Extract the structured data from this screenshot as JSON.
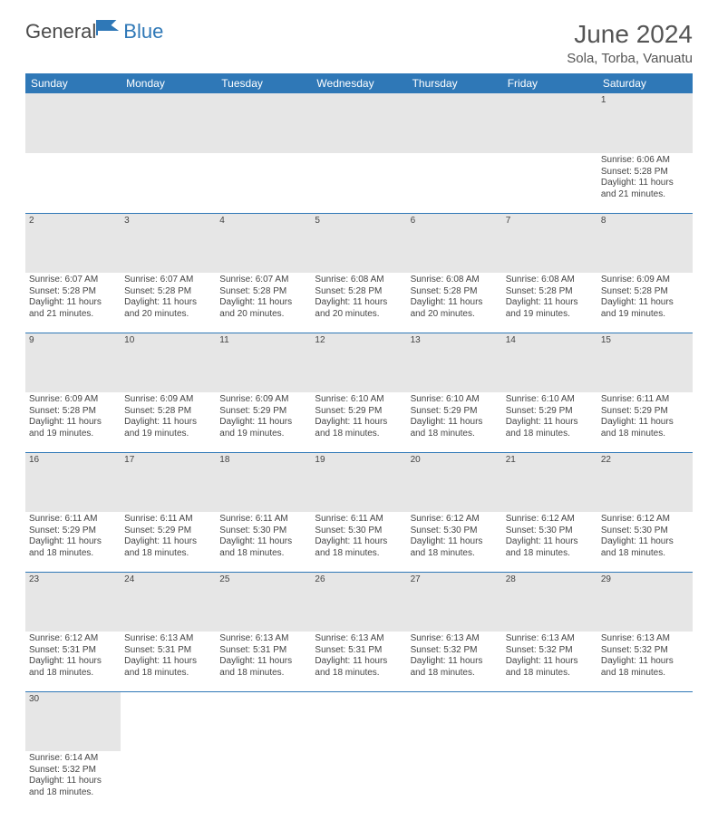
{
  "brand": {
    "part1": "General",
    "part2": "Blue"
  },
  "title": "June 2024",
  "location": "Sola, Torba, Vanuatu",
  "colors": {
    "header_bg": "#2f78b7",
    "header_text": "#ffffff",
    "daynum_bg": "#e6e6e6",
    "page_bg": "#ffffff",
    "text": "#444444",
    "row_border": "#2f78b7"
  },
  "typography": {
    "title_fontsize": 28,
    "location_fontsize": 15,
    "weekday_fontsize": 12,
    "daynum_fontsize": 11,
    "cell_fontsize": 10
  },
  "weekdays": [
    "Sunday",
    "Monday",
    "Tuesday",
    "Wednesday",
    "Thursday",
    "Friday",
    "Saturday"
  ],
  "weeks": [
    [
      null,
      null,
      null,
      null,
      null,
      null,
      {
        "d": "1",
        "l1": "Sunrise: 6:06 AM",
        "l2": "Sunset: 5:28 PM",
        "l3": "Daylight: 11 hours",
        "l4": "and 21 minutes."
      }
    ],
    [
      {
        "d": "2",
        "l1": "Sunrise: 6:07 AM",
        "l2": "Sunset: 5:28 PM",
        "l3": "Daylight: 11 hours",
        "l4": "and 21 minutes."
      },
      {
        "d": "3",
        "l1": "Sunrise: 6:07 AM",
        "l2": "Sunset: 5:28 PM",
        "l3": "Daylight: 11 hours",
        "l4": "and 20 minutes."
      },
      {
        "d": "4",
        "l1": "Sunrise: 6:07 AM",
        "l2": "Sunset: 5:28 PM",
        "l3": "Daylight: 11 hours",
        "l4": "and 20 minutes."
      },
      {
        "d": "5",
        "l1": "Sunrise: 6:08 AM",
        "l2": "Sunset: 5:28 PM",
        "l3": "Daylight: 11 hours",
        "l4": "and 20 minutes."
      },
      {
        "d": "6",
        "l1": "Sunrise: 6:08 AM",
        "l2": "Sunset: 5:28 PM",
        "l3": "Daylight: 11 hours",
        "l4": "and 20 minutes."
      },
      {
        "d": "7",
        "l1": "Sunrise: 6:08 AM",
        "l2": "Sunset: 5:28 PM",
        "l3": "Daylight: 11 hours",
        "l4": "and 19 minutes."
      },
      {
        "d": "8",
        "l1": "Sunrise: 6:09 AM",
        "l2": "Sunset: 5:28 PM",
        "l3": "Daylight: 11 hours",
        "l4": "and 19 minutes."
      }
    ],
    [
      {
        "d": "9",
        "l1": "Sunrise: 6:09 AM",
        "l2": "Sunset: 5:28 PM",
        "l3": "Daylight: 11 hours",
        "l4": "and 19 minutes."
      },
      {
        "d": "10",
        "l1": "Sunrise: 6:09 AM",
        "l2": "Sunset: 5:28 PM",
        "l3": "Daylight: 11 hours",
        "l4": "and 19 minutes."
      },
      {
        "d": "11",
        "l1": "Sunrise: 6:09 AM",
        "l2": "Sunset: 5:29 PM",
        "l3": "Daylight: 11 hours",
        "l4": "and 19 minutes."
      },
      {
        "d": "12",
        "l1": "Sunrise: 6:10 AM",
        "l2": "Sunset: 5:29 PM",
        "l3": "Daylight: 11 hours",
        "l4": "and 18 minutes."
      },
      {
        "d": "13",
        "l1": "Sunrise: 6:10 AM",
        "l2": "Sunset: 5:29 PM",
        "l3": "Daylight: 11 hours",
        "l4": "and 18 minutes."
      },
      {
        "d": "14",
        "l1": "Sunrise: 6:10 AM",
        "l2": "Sunset: 5:29 PM",
        "l3": "Daylight: 11 hours",
        "l4": "and 18 minutes."
      },
      {
        "d": "15",
        "l1": "Sunrise: 6:11 AM",
        "l2": "Sunset: 5:29 PM",
        "l3": "Daylight: 11 hours",
        "l4": "and 18 minutes."
      }
    ],
    [
      {
        "d": "16",
        "l1": "Sunrise: 6:11 AM",
        "l2": "Sunset: 5:29 PM",
        "l3": "Daylight: 11 hours",
        "l4": "and 18 minutes."
      },
      {
        "d": "17",
        "l1": "Sunrise: 6:11 AM",
        "l2": "Sunset: 5:29 PM",
        "l3": "Daylight: 11 hours",
        "l4": "and 18 minutes."
      },
      {
        "d": "18",
        "l1": "Sunrise: 6:11 AM",
        "l2": "Sunset: 5:30 PM",
        "l3": "Daylight: 11 hours",
        "l4": "and 18 minutes."
      },
      {
        "d": "19",
        "l1": "Sunrise: 6:11 AM",
        "l2": "Sunset: 5:30 PM",
        "l3": "Daylight: 11 hours",
        "l4": "and 18 minutes."
      },
      {
        "d": "20",
        "l1": "Sunrise: 6:12 AM",
        "l2": "Sunset: 5:30 PM",
        "l3": "Daylight: 11 hours",
        "l4": "and 18 minutes."
      },
      {
        "d": "21",
        "l1": "Sunrise: 6:12 AM",
        "l2": "Sunset: 5:30 PM",
        "l3": "Daylight: 11 hours",
        "l4": "and 18 minutes."
      },
      {
        "d": "22",
        "l1": "Sunrise: 6:12 AM",
        "l2": "Sunset: 5:30 PM",
        "l3": "Daylight: 11 hours",
        "l4": "and 18 minutes."
      }
    ],
    [
      {
        "d": "23",
        "l1": "Sunrise: 6:12 AM",
        "l2": "Sunset: 5:31 PM",
        "l3": "Daylight: 11 hours",
        "l4": "and 18 minutes."
      },
      {
        "d": "24",
        "l1": "Sunrise: 6:13 AM",
        "l2": "Sunset: 5:31 PM",
        "l3": "Daylight: 11 hours",
        "l4": "and 18 minutes."
      },
      {
        "d": "25",
        "l1": "Sunrise: 6:13 AM",
        "l2": "Sunset: 5:31 PM",
        "l3": "Daylight: 11 hours",
        "l4": "and 18 minutes."
      },
      {
        "d": "26",
        "l1": "Sunrise: 6:13 AM",
        "l2": "Sunset: 5:31 PM",
        "l3": "Daylight: 11 hours",
        "l4": "and 18 minutes."
      },
      {
        "d": "27",
        "l1": "Sunrise: 6:13 AM",
        "l2": "Sunset: 5:32 PM",
        "l3": "Daylight: 11 hours",
        "l4": "and 18 minutes."
      },
      {
        "d": "28",
        "l1": "Sunrise: 6:13 AM",
        "l2": "Sunset: 5:32 PM",
        "l3": "Daylight: 11 hours",
        "l4": "and 18 minutes."
      },
      {
        "d": "29",
        "l1": "Sunrise: 6:13 AM",
        "l2": "Sunset: 5:32 PM",
        "l3": "Daylight: 11 hours",
        "l4": "and 18 minutes."
      }
    ],
    [
      {
        "d": "30",
        "l1": "Sunrise: 6:14 AM",
        "l2": "Sunset: 5:32 PM",
        "l3": "Daylight: 11 hours",
        "l4": "and 18 minutes."
      },
      null,
      null,
      null,
      null,
      null,
      null
    ]
  ]
}
